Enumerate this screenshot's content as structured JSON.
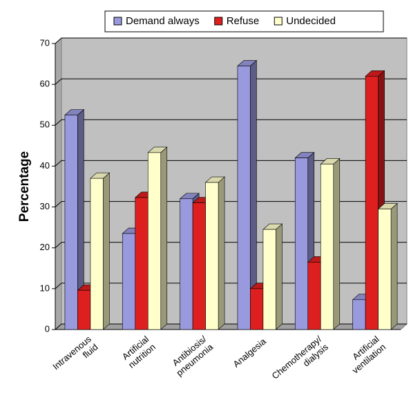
{
  "chart_data": {
    "type": "bar3d",
    "y_label": "Percentage",
    "categories": [
      "Intravenous fluid",
      "Artificial nutrition",
      "Antibiosis/ pneumonia",
      "Analgesia",
      "Chemotherapy/ dialysis",
      "Artificial ventilation"
    ],
    "series": [
      {
        "name": "Demand always",
        "color": "#9999dd",
        "values": [
          52.5,
          23.5,
          32,
          64.5,
          42,
          7.3
        ]
      },
      {
        "name": "Refuse",
        "color": "#dd1f1f",
        "values": [
          9.6,
          32.3,
          31,
          10,
          16.5,
          62
        ]
      },
      {
        "name": "Undecided",
        "color": "#ffffcc",
        "values": [
          37,
          43.3,
          36,
          24.5,
          40.5,
          29.5
        ]
      }
    ],
    "ylim": [
      0,
      70
    ],
    "yticks": [
      0,
      10,
      20,
      30,
      40,
      50,
      60,
      70
    ],
    "grid": true,
    "legend": "top"
  }
}
